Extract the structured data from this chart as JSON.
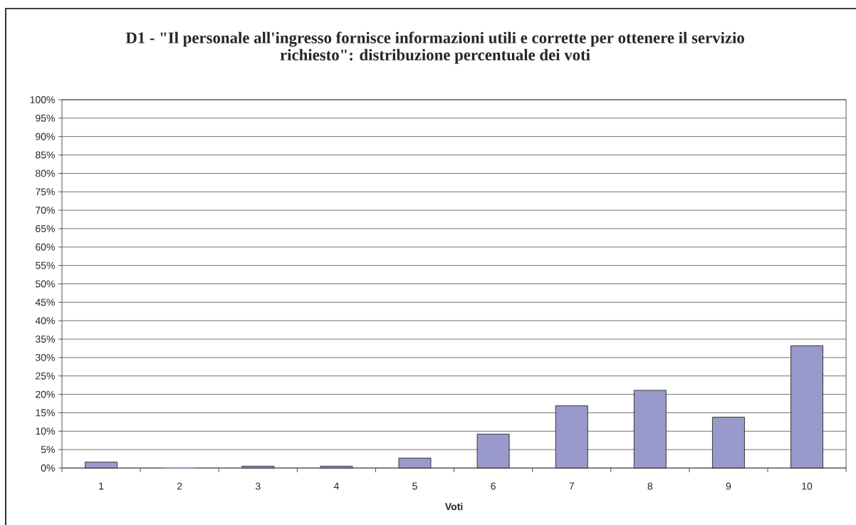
{
  "chart_data": {
    "type": "bar",
    "title": "D1 - \"Il personale all'ingresso fornisce informazioni utili e corrette per ottenere il servizio richiesto\": distribuzione percentuale dei voti",
    "xlabel": "Voti",
    "categories": [
      "1",
      "2",
      "3",
      "4",
      "5",
      "6",
      "7",
      "8",
      "9",
      "10"
    ],
    "values": [
      1.6,
      0,
      0.5,
      0.5,
      2.7,
      9.2,
      16.9,
      21.1,
      13.8,
      33.2
    ],
    "color": "#9999cc",
    "ylim": [
      0,
      100
    ],
    "yticks": [
      {
        "value": 0,
        "label": "0%"
      },
      {
        "value": 5,
        "label": "5%"
      },
      {
        "value": 10,
        "label": "10%"
      },
      {
        "value": 15,
        "label": "15%"
      },
      {
        "value": 20,
        "label": "20%"
      },
      {
        "value": 25,
        "label": "25%"
      },
      {
        "value": 30,
        "label": "30%"
      },
      {
        "value": 35,
        "label": "35%"
      },
      {
        "value": 40,
        "label": "40%"
      },
      {
        "value": 45,
        "label": "45%"
      },
      {
        "value": 50,
        "label": "50%"
      },
      {
        "value": 55,
        "label": "55%"
      },
      {
        "value": 60,
        "label": "60%"
      },
      {
        "value": 65,
        "label": "65%"
      },
      {
        "value": 70,
        "label": "70%"
      },
      {
        "value": 75,
        "label": "75%"
      },
      {
        "value": 80,
        "label": "80%"
      },
      {
        "value": 85,
        "label": "85%"
      },
      {
        "value": 90,
        "label": "90%"
      },
      {
        "value": 95,
        "label": "95%"
      },
      {
        "value": 100,
        "label": "100%"
      }
    ],
    "grid": "y"
  }
}
